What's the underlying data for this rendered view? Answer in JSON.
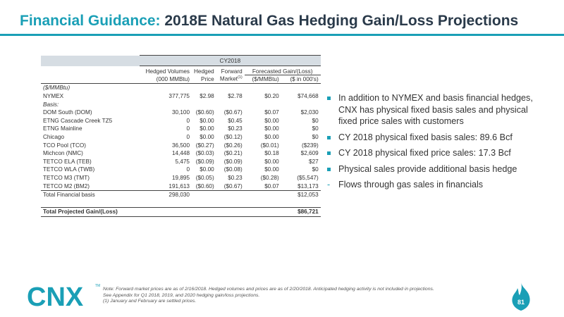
{
  "title": {
    "highlight": "Financial Guidance:",
    "rest": " 2018E Natural Gas Hedging Gain/Loss Projections"
  },
  "table": {
    "period": "CY2018",
    "headers": {
      "hedged_volumes": "Hedged Volumes",
      "hedged_volumes_unit": "(000 MMBtu)",
      "hedged": "Hedged",
      "price": "Price",
      "forward": "Forward",
      "market": "Market",
      "market_note": "(1)",
      "forecasted": "Forecasted Gain/(Loss)",
      "per_mmbtu": "($/MMBtu)",
      "thousands": "($ in 000's)"
    },
    "unit_label": "($/MMBtu)",
    "nymex": {
      "label": "NYMEX",
      "volume": "377,775",
      "price": "$2.98",
      "forward": "$2.78",
      "per": "$0.20",
      "total": "$74,668"
    },
    "basis_label": "Basis:",
    "rows": [
      {
        "label": "DOM South (DOM)",
        "volume": "30,100",
        "price": "($0.60)",
        "forward": "($0.67)",
        "per": "$0.07",
        "total": "$2,030"
      },
      {
        "label": "ETNG Cascade Creek TZ5",
        "volume": "0",
        "price": "$0.00",
        "forward": "$0.45",
        "per": "$0.00",
        "total": "$0"
      },
      {
        "label": "ETNG Mainline",
        "volume": "0",
        "price": "$0.00",
        "forward": "$0.23",
        "per": "$0.00",
        "total": "$0"
      },
      {
        "label": "Chicago",
        "volume": "0",
        "price": "$0.00",
        "forward": "($0.12)",
        "per": "$0.00",
        "total": "$0"
      },
      {
        "label": "TCO Pool (TCO)",
        "volume": "36,500",
        "price": "($0.27)",
        "forward": "($0.26)",
        "per": "($0.01)",
        "total": "($239)"
      },
      {
        "label": "Michcon (NMC)",
        "volume": "14,448",
        "price": "($0.03)",
        "forward": "($0.21)",
        "per": "$0.18",
        "total": "$2,609"
      },
      {
        "label": "TETCO ELA (TEB)",
        "volume": "5,475",
        "price": "($0.09)",
        "forward": "($0.09)",
        "per": "$0.00",
        "total": "$27"
      },
      {
        "label": "TETCO WLA (TWB)",
        "volume": "0",
        "price": "$0.00",
        "forward": "($0.08)",
        "per": "$0.00",
        "total": "$0"
      },
      {
        "label": "TETCO M3 (TMT)",
        "volume": "19,895",
        "price": "($0.05)",
        "forward": "$0.23",
        "per": "($0.28)",
        "total": "($5,547)"
      },
      {
        "label": "TETCO M2 (BM2)",
        "volume": "191,613",
        "price": "($0.60)",
        "forward": "($0.67)",
        "per": "$0.07",
        "total": "$13,173"
      }
    ],
    "total_financial_basis": {
      "label": "Total Financial basis",
      "volume": "298,030",
      "total": "$12,053"
    },
    "total_projected": {
      "label": "Total Projected Gain/(Loss)",
      "total": "$86,721"
    }
  },
  "bullets": [
    "In addition to NYMEX and basis financial hedges, CNX has physical fixed basis sales and physical fixed price sales with customers",
    "CY 2018 physical fixed basis sales: 89.6 Bcf",
    "CY 2018 physical fixed price sales: 17.3 Bcf",
    "Physical sales provide additional basis hedge"
  ],
  "sub_bullet": {
    "dash": "-",
    "text": "Flows through gas sales in financials"
  },
  "footer": {
    "logo_text": "CNX",
    "tm": "TM",
    "note_lines": [
      "Note: Forward market prices are as of 2/16/2018. Hedged volumes and prices are as of 2/20/2018. Anticipated hedging activity is not included in projections.",
      "See Appendix for Q1 2018, 2019, and 2020 hedging gain/loss projections.",
      "(1)  January and February are settled prices."
    ],
    "page_number": "81"
  },
  "colors": {
    "accent": "#1a9fb6",
    "title_dark": "#2a3a4a",
    "band": "#d6dde3"
  }
}
